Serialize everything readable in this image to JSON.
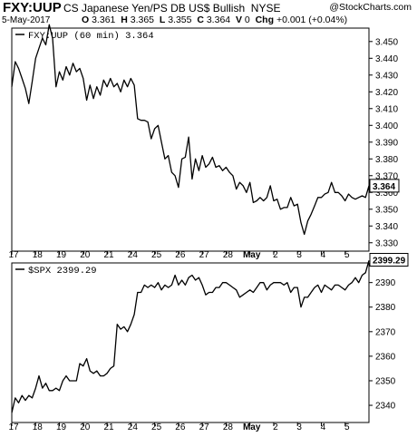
{
  "header": {
    "ticker": "FXY:UUP",
    "description": "CS Japanese Yen/PS DB US$ Bullish",
    "exchange": "NYSE",
    "date": "5-May-2017",
    "open_label": "O",
    "open": "3.361",
    "high_label": "H",
    "high": "3.365",
    "low_label": "L",
    "low": "3.355",
    "close_label": "C",
    "close": "3.364",
    "volume_label": "V",
    "volume": "0",
    "change_label": "Chg",
    "change": "+0.001 (+0.04%)",
    "watermark": "@StockCharts.com"
  },
  "chart_data": [
    {
      "type": "line",
      "panel_title": "FXY:UUP (60 min) 3.364",
      "last_value": "3.364",
      "ylim": [
        3.325,
        3.458
      ],
      "y_ticks": [
        "3.330",
        "3.340",
        "3.350",
        "3.360",
        "3.370",
        "3.380",
        "3.390",
        "3.400",
        "3.410",
        "3.420",
        "3.430",
        "3.440",
        "3.450"
      ],
      "x_tick_labels": [
        "17",
        "18",
        "19",
        "20",
        "21",
        "24",
        "25",
        "26",
        "27",
        "28",
        "May",
        "2",
        "3",
        "4",
        "5"
      ],
      "x": [
        0,
        1,
        2,
        3,
        4,
        5,
        6,
        7,
        8,
        9,
        10,
        11,
        12,
        13,
        14,
        15,
        16,
        17,
        18,
        19,
        20,
        21,
        22,
        23,
        24,
        25,
        26,
        27,
        28,
        29,
        30,
        31,
        32,
        33,
        34,
        35,
        36,
        37,
        38,
        39,
        40,
        41,
        42,
        43,
        44,
        45,
        46,
        47,
        48,
        49,
        50,
        51,
        52,
        53,
        54,
        55,
        56,
        57,
        58,
        59,
        60,
        61,
        62,
        63,
        64,
        65,
        66,
        67,
        68,
        69,
        70,
        71,
        72,
        73,
        74,
        75,
        76,
        77,
        78,
        79,
        80,
        81,
        82,
        83,
        84,
        85,
        86,
        87,
        88,
        89,
        90,
        91,
        92,
        93,
        94,
        95,
        96,
        97,
        98,
        99,
        100,
        101,
        102,
        103,
        104,
        105
      ],
      "values": [
        3.423,
        3.438,
        3.434,
        3.428,
        3.422,
        3.413,
        3.426,
        3.44,
        3.446,
        3.452,
        3.448,
        3.46,
        3.452,
        3.423,
        3.432,
        3.427,
        3.435,
        3.43,
        3.437,
        3.432,
        3.434,
        3.428,
        3.415,
        3.424,
        3.416,
        3.423,
        3.418,
        3.427,
        3.423,
        3.428,
        3.423,
        3.425,
        3.42,
        3.427,
        3.423,
        3.428,
        3.424,
        3.404,
        3.403,
        3.403,
        3.402,
        3.392,
        3.398,
        3.4,
        3.39,
        3.38,
        3.382,
        3.372,
        3.37,
        3.363,
        3.38,
        3.381,
        3.393,
        3.368,
        3.38,
        3.373,
        3.382,
        3.375,
        3.377,
        3.381,
        3.375,
        3.376,
        3.373,
        3.375,
        3.372,
        3.37,
        3.362,
        3.366,
        3.364,
        3.36,
        3.366,
        3.354,
        3.355,
        3.357,
        3.355,
        3.357,
        3.364,
        3.355,
        3.356,
        3.35,
        3.351,
        3.351,
        3.357,
        3.352,
        3.353,
        3.342,
        3.335,
        3.343,
        3.347,
        3.352,
        3.357,
        3.357,
        3.359,
        3.36,
        3.366,
        3.36,
        3.36,
        3.358,
        3.355,
        3.359,
        3.357,
        3.356,
        3.357,
        3.358,
        3.357,
        3.364
      ],
      "grid": false
    },
    {
      "type": "line",
      "panel_title": "$SPX 2399.29",
      "last_value": "2399.29",
      "ylim": [
        2333,
        2398
      ],
      "y_ticks": [
        "2340",
        "2350",
        "2360",
        "2370",
        "2380",
        "2390"
      ],
      "x_tick_labels": [
        "17",
        "18",
        "19",
        "20",
        "21",
        "24",
        "25",
        "26",
        "27",
        "28",
        "May",
        "2",
        "3",
        "4",
        "5"
      ],
      "x": [
        0,
        1,
        2,
        3,
        4,
        5,
        6,
        7,
        8,
        9,
        10,
        11,
        12,
        13,
        14,
        15,
        16,
        17,
        18,
        19,
        20,
        21,
        22,
        23,
        24,
        25,
        26,
        27,
        28,
        29,
        30,
        31,
        32,
        33,
        34,
        35,
        36,
        37,
        38,
        39,
        40,
        41,
        42,
        43,
        44,
        45,
        46,
        47,
        48,
        49,
        50,
        51,
        52,
        53,
        54,
        55,
        56,
        57,
        58,
        59,
        60,
        61,
        62,
        63,
        64,
        65,
        66,
        67,
        68,
        69,
        70,
        71,
        72,
        73,
        74,
        75,
        76,
        77,
        78,
        79,
        80,
        81,
        82,
        83,
        84,
        85,
        86,
        87,
        88,
        89,
        90,
        91,
        92,
        93,
        94,
        95,
        96,
        97,
        98,
        99,
        100,
        101,
        102,
        103,
        104,
        105
      ],
      "values": [
        2337,
        2343,
        2341,
        2344,
        2342,
        2344,
        2343,
        2347,
        2352,
        2347,
        2349,
        2346,
        2346,
        2347,
        2346,
        2350,
        2352,
        2350,
        2350,
        2350,
        2357,
        2356,
        2359,
        2354,
        2353,
        2354,
        2352,
        2352,
        2353,
        2355,
        2356,
        2373,
        2371,
        2372,
        2370,
        2373,
        2377,
        2386,
        2386,
        2389,
        2388,
        2389,
        2388,
        2390,
        2387,
        2389,
        2388,
        2389,
        2393,
        2389,
        2391,
        2389,
        2392,
        2393,
        2391,
        2392,
        2389,
        2385,
        2386,
        2386,
        2388,
        2388,
        2390,
        2390,
        2389,
        2388,
        2387,
        2384,
        2385,
        2386,
        2387,
        2386,
        2388,
        2390,
        2390,
        2387,
        2389,
        2390,
        2390,
        2390,
        2389,
        2390,
        2386,
        2388,
        2388,
        2380,
        2384,
        2384,
        2386,
        2388,
        2389,
        2386,
        2389,
        2388,
        2387,
        2389,
        2389,
        2388,
        2387,
        2389,
        2390,
        2392,
        2390,
        2393,
        2394,
        2399
      ],
      "grid": false
    }
  ]
}
